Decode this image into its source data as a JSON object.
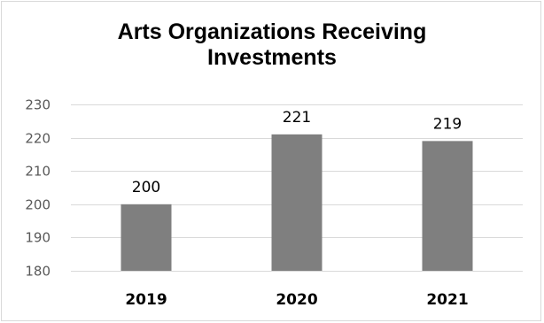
{
  "chart_data": {
    "type": "bar",
    "title_lines": [
      "Arts Organizations Receiving",
      "Investments"
    ],
    "categories": [
      "2019",
      "2020",
      "2021"
    ],
    "values": [
      200,
      221,
      219
    ],
    "data_labels": [
      "200",
      "221",
      "219"
    ],
    "ylim": [
      180,
      230
    ],
    "yticks": [
      180,
      190,
      200,
      210,
      220,
      230
    ],
    "ytick_labels": [
      "180",
      "190",
      "200",
      "210",
      "220",
      "230"
    ],
    "xlabel": "",
    "ylabel": "",
    "grid": true,
    "legend": "none",
    "colors": {
      "bar": "#7f7f7f",
      "grid": "#d9d9d9",
      "border": "#d9d9d9"
    }
  }
}
